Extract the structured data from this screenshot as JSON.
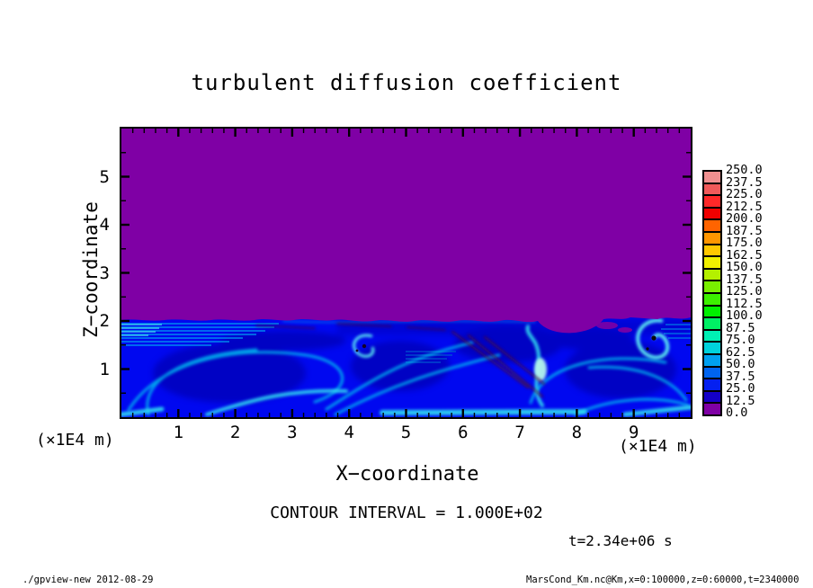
{
  "title": "turbulent diffusion coefficient",
  "plot": {
    "x_axis": {
      "label": "X−coordinate",
      "unit": "(×1E4 m)",
      "major_tick_labels": [
        "1",
        "2",
        "3",
        "4",
        "5",
        "6",
        "7",
        "8",
        "9"
      ],
      "range": [
        0,
        10
      ],
      "minor_step": 0.2
    },
    "y_axis": {
      "label": "Z−coordinate",
      "unit": "(×1E4 m)",
      "major_tick_labels": [
        "1",
        "2",
        "3",
        "4",
        "5"
      ],
      "range": [
        0,
        6
      ],
      "minor_step": 0.5
    },
    "field_colors": {
      "zero_region_purple": "#7F00A5",
      "mixed_layer_base_blue": "#0008F0"
    }
  },
  "colorbar": {
    "tick_labels": [
      "250.0",
      "237.5",
      "225.0",
      "212.5",
      "200.0",
      "187.5",
      "175.0",
      "162.5",
      "150.0",
      "137.5",
      "125.0",
      "112.5",
      "100.0",
      "87.5",
      "75.0",
      "62.5",
      "50.0",
      "37.5",
      "25.0",
      "12.5",
      "0.0"
    ],
    "cell_colors_top_to_bottom": [
      "#F09090",
      "#F05A5A",
      "#FF2828",
      "#F00000",
      "#FF6400",
      "#FF9600",
      "#FFC800",
      "#F0F000",
      "#B4F000",
      "#78F000",
      "#3CF000",
      "#00F000",
      "#00F064",
      "#00F0B4",
      "#00D2DC",
      "#00A0F0",
      "#0064F0",
      "#0520F0",
      "#1400C8",
      "#7F00A5"
    ]
  },
  "annotations": {
    "contour_interval": "CONTOUR INTERVAL = 1.000E+02",
    "time": "t=2.34e+06 s"
  },
  "footer": {
    "left": "./gpview-new  2012-08-29",
    "right": "MarsCond_Km.nc@Km,x=0:100000,z=0:60000,t=2340000"
  },
  "chart_data": {
    "type": "heatmap",
    "title": "turbulent diffusion coefficient",
    "xlabel": "X−coordinate (×1E4 m)",
    "ylabel": "Z−coordinate (×1E4 m)",
    "xlim": [
      0,
      10
    ],
    "ylim": [
      0,
      6
    ],
    "x_domain_m": "0:100000",
    "z_domain_m": "0:60000",
    "time_seconds": 2340000,
    "value_levels": {
      "min": 0.0,
      "max": 250.0,
      "step": 12.5
    },
    "contour_interval": 100.0,
    "legend_position": "right colorbar, 20 cells, labels every 12.5",
    "grid": false,
    "field_summary": [
      {
        "region": "z ≈ 2 to 6, all x",
        "value": "≈0 (uniform purple)"
      },
      {
        "region": "z ≈ 0 to 2, all x",
        "value": "turbulent mixed layer, mostly 12.5–100 (blue to cyan) with convection-cell filament structures"
      },
      {
        "feature": "thin horizontal layered striping below interface at x≈0–2.5 and x≈5–6, z≈1.6–2"
      },
      {
        "feature": "large convection-cell rings near x≈0.3–3 z≈0.2–1.5 and x≈7–9.7 z≈0.3–1.5"
      },
      {
        "feature": "bright cyan vortices (values ≈75–100) near x≈4.2 z≈1.5 and x≈9.3 z≈1.6 with near-zero dark cores"
      },
      {
        "feature": "bright cyan updraft plume near x≈7.3, z≈0.2–1.6"
      },
      {
        "feature": "near-zero (dark purple) diagonal filaments around x≈5.8–7.6 descending from z≈1.8 to z≈0.4"
      },
      {
        "feature": "purple (≈0) pocket intruding below interface near x≈7.3–8.5, z≈1.6–2"
      },
      {
        "feature": "bright cyan band along bottom boundary near x≈4.5–8.1"
      }
    ]
  }
}
